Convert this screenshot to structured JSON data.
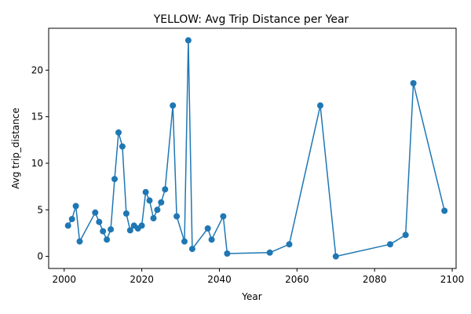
{
  "chart_data": {
    "type": "line",
    "title": "YELLOW: Avg Trip Distance per Year",
    "xlabel": "Year",
    "ylabel": "Avg trip_distance",
    "xlim": [
      1996,
      2101
    ],
    "ylim": [
      -1.3,
      24.5
    ],
    "xticks": [
      2000,
      2020,
      2040,
      2060,
      2080,
      2100
    ],
    "yticks": [
      0,
      5,
      10,
      15,
      20
    ],
    "grid": false,
    "legend": false,
    "line_color": "#1f77b4",
    "marker": "circle",
    "series": [
      {
        "x": [
          2001,
          2002,
          2003,
          2004,
          2008,
          2009,
          2010,
          2011,
          2012,
          2013,
          2014,
          2015,
          2016,
          2017,
          2018,
          2019,
          2020,
          2021,
          2022,
          2023,
          2024,
          2025,
          2026,
          2028,
          2029,
          2031,
          2032,
          2033,
          2037,
          2038,
          2041,
          2042,
          2053,
          2058,
          2066,
          2070,
          2084,
          2088,
          2090,
          2098
        ],
        "y": [
          3.3,
          4.0,
          5.4,
          1.6,
          4.7,
          3.7,
          2.7,
          1.8,
          2.9,
          8.3,
          13.3,
          11.8,
          4.6,
          2.8,
          3.3,
          3.0,
          3.3,
          6.9,
          6.0,
          4.1,
          5.0,
          5.8,
          7.2,
          16.2,
          4.3,
          1.6,
          23.2,
          0.8,
          3.0,
          1.8,
          4.3,
          0.3,
          0.4,
          1.3,
          16.2,
          0.0,
          1.3,
          2.3,
          18.6,
          4.9
        ]
      }
    ]
  }
}
